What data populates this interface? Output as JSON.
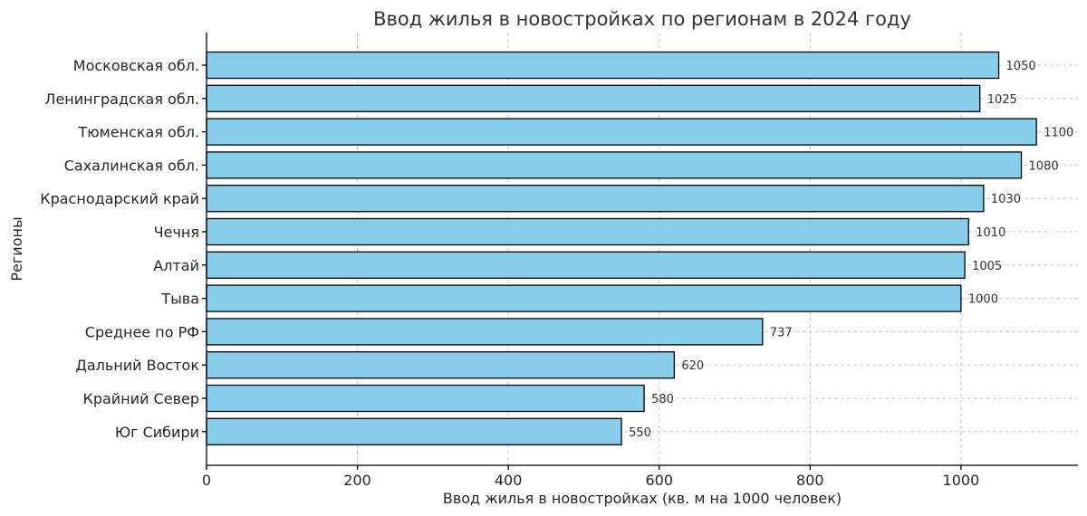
{
  "chart_data": {
    "type": "bar",
    "orientation": "horizontal",
    "title": "Ввод жилья в новостройках по регионам в 2024 году",
    "xlabel": "Ввод жилья в новостройках (кв. м на 1000 человек)",
    "ylabel": "Регионы",
    "categories": [
      "Московская обл.",
      "Ленинградская обл.",
      "Тюменская обл.",
      "Сахалинская обл.",
      "Краснодарский край",
      "Чечня",
      "Алтай",
      "Тыва",
      "Среднее по РФ",
      "Дальний Восток",
      "Крайний Север",
      "Юг Сибири"
    ],
    "values": [
      1050,
      1025,
      1100,
      1080,
      1030,
      1010,
      1005,
      1000,
      737,
      620,
      580,
      550
    ],
    "xlim": [
      0,
      1155
    ],
    "xticks": [
      0,
      200,
      400,
      600,
      800,
      1000
    ],
    "grid": true,
    "colors": {
      "bar": "#87ceeb",
      "edge": "#000000"
    }
  }
}
